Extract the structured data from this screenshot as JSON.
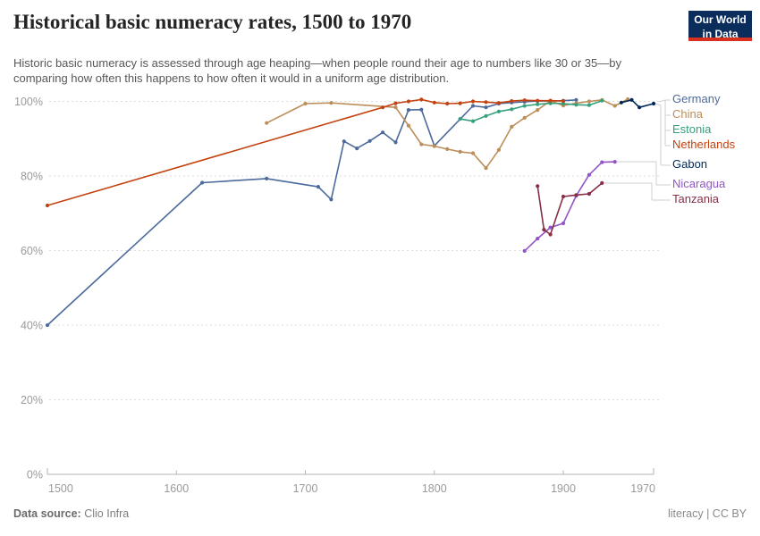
{
  "header": {
    "title": "Historical basic numeracy rates, 1500 to 1970",
    "subtitle": "Historic basic numeracy is assessed through age heaping—when people round their age to numbers like 30 or 35—by comparing how often this happens to how often it would in a uniform age distribution.",
    "logo": {
      "line1": "Our World",
      "line2": "in Data"
    }
  },
  "footer": {
    "source_label": "Data source:",
    "source_value": "Clio Infra",
    "note": "literacy | CC BY"
  },
  "chart_data": {
    "type": "line",
    "title": "Historical basic numeracy rates, 1500 to 1970",
    "xlabel": "",
    "ylabel": "",
    "xlim": [
      1500,
      1970
    ],
    "ylim": [
      0,
      100
    ],
    "x_ticks": [
      1500,
      1600,
      1700,
      1800,
      1900,
      1970
    ],
    "y_ticks": [
      0,
      20,
      40,
      60,
      80,
      100
    ],
    "y_tick_suffix": "%",
    "grid": "horizontal-dashed",
    "legend_position": "right",
    "series": [
      {
        "name": "Germany",
        "color": "#4C6A9C",
        "points": [
          [
            1500,
            40.0
          ],
          [
            1620,
            78.2
          ],
          [
            1670,
            79.3
          ],
          [
            1710,
            77.1
          ],
          [
            1720,
            73.7
          ],
          [
            1730,
            89.3
          ],
          [
            1740,
            87.4
          ],
          [
            1750,
            89.4
          ],
          [
            1760,
            91.7
          ],
          [
            1770,
            89.0
          ],
          [
            1780,
            97.7
          ],
          [
            1790,
            97.8
          ],
          [
            1800,
            88.1
          ],
          [
            1830,
            98.8
          ],
          [
            1840,
            98.4
          ],
          [
            1850,
            99.4
          ],
          [
            1860,
            99.7
          ],
          [
            1870,
            99.9
          ],
          [
            1880,
            100.1
          ],
          [
            1890,
            100.1
          ],
          [
            1900,
            100.2
          ],
          [
            1910,
            100.4
          ]
        ]
      },
      {
        "name": "China",
        "color": "#BC8E5A",
        "points": [
          [
            1670,
            94.2
          ],
          [
            1700,
            99.4
          ],
          [
            1720,
            99.6
          ],
          [
            1770,
            98.4
          ],
          [
            1780,
            93.5
          ],
          [
            1790,
            88.5
          ],
          [
            1800,
            88.0
          ],
          [
            1810,
            87.2
          ],
          [
            1820,
            86.5
          ],
          [
            1830,
            86.1
          ],
          [
            1840,
            82.1
          ],
          [
            1850,
            87.0
          ],
          [
            1860,
            93.2
          ],
          [
            1870,
            95.6
          ],
          [
            1880,
            97.7
          ],
          [
            1890,
            100.2
          ],
          [
            1900,
            98.9
          ],
          [
            1910,
            99.5
          ],
          [
            1920,
            100.0
          ],
          [
            1930,
            100.4
          ],
          [
            1940,
            98.8
          ],
          [
            1950,
            100.6
          ]
        ]
      },
      {
        "name": "Estonia",
        "color": "#35A07C",
        "points": [
          [
            1820,
            95.3
          ],
          [
            1830,
            94.7
          ],
          [
            1840,
            96.1
          ],
          [
            1850,
            97.3
          ],
          [
            1860,
            97.9
          ],
          [
            1870,
            98.8
          ],
          [
            1880,
            99.2
          ],
          [
            1890,
            99.5
          ],
          [
            1900,
            99.4
          ],
          [
            1910,
            99.1
          ],
          [
            1920,
            99.0
          ],
          [
            1930,
            100.2
          ]
        ]
      },
      {
        "name": "Netherlands",
        "color": "#C4420F",
        "points": [
          [
            1500,
            72.1
          ],
          [
            1760,
            98.4
          ],
          [
            1770,
            99.5
          ],
          [
            1780,
            100.0
          ],
          [
            1790,
            100.5
          ],
          [
            1800,
            99.7
          ],
          [
            1810,
            99.4
          ],
          [
            1820,
            99.5
          ],
          [
            1830,
            100.0
          ],
          [
            1840,
            99.8
          ],
          [
            1850,
            99.6
          ],
          [
            1860,
            100.1
          ],
          [
            1870,
            100.3
          ],
          [
            1880,
            100.2
          ],
          [
            1890,
            100.2
          ],
          [
            1900,
            100.1
          ]
        ]
      },
      {
        "name": "Gabon",
        "color": "#00295B",
        "points": [
          [
            1945,
            99.7
          ],
          [
            1953,
            100.4
          ],
          [
            1959,
            98.4
          ],
          [
            1970,
            99.4
          ]
        ]
      },
      {
        "name": "Nicaragua",
        "color": "#9255C8",
        "points": [
          [
            1870,
            59.9
          ],
          [
            1880,
            63.2
          ],
          [
            1890,
            66.2
          ],
          [
            1900,
            67.3
          ],
          [
            1910,
            74.7
          ],
          [
            1920,
            80.3
          ],
          [
            1930,
            83.7
          ],
          [
            1940,
            83.8
          ]
        ]
      },
      {
        "name": "Tanzania",
        "color": "#882E45",
        "points": [
          [
            1880,
            77.3
          ],
          [
            1885,
            65.6
          ],
          [
            1890,
            64.3
          ],
          [
            1900,
            74.5
          ],
          [
            1910,
            74.9
          ],
          [
            1920,
            75.2
          ],
          [
            1930,
            78.1
          ]
        ]
      }
    ]
  }
}
